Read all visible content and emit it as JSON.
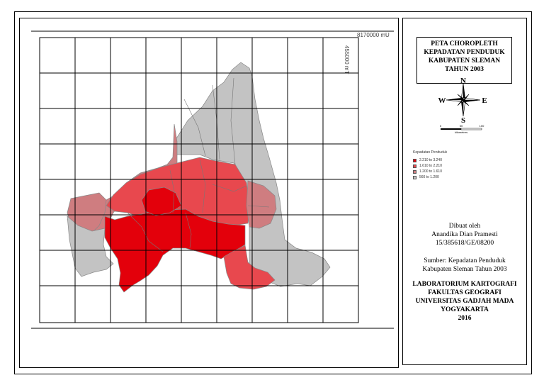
{
  "map": {
    "coord_top": "8170000 mU",
    "coord_side": "455000 mT"
  },
  "title": {
    "line1": "PETA CHOROPLETH",
    "line2": "KEPADATAN PENDUDUK",
    "line3": "KABUPATEN SLEMAN",
    "line4": "TAHUN 2003"
  },
  "compass": {
    "n": "N",
    "s": "S",
    "e": "E",
    "w": "W"
  },
  "scale": {
    "t0": "0",
    "t1": "50",
    "t2": "100",
    "unit": "kilometres"
  },
  "legend": {
    "title": "Kepadatan Penduduk",
    "items": [
      {
        "label": "2.210 to 3.240",
        "color": "#e3000b"
      },
      {
        "label": "1.610 to 2.210",
        "color": "#e8484e"
      },
      {
        "label": "1.200 to 1.610",
        "color": "#cf7d80"
      },
      {
        "label": "560 to 1.200",
        "color": "#c3c3c3"
      }
    ]
  },
  "credit": {
    "made_by": "Dibuat oleh",
    "author": "Anandika Dian Pramesti",
    "nim": "15/385618/GE/08200",
    "source_1": "Sumber: Kepadatan Penduduk",
    "source_2": "Kabupaten Sleman Tahun 2003"
  },
  "lab": {
    "line1": "LABORATORIUM KARTOGRAFI",
    "line2": "FAKULTAS GEOGRAFI",
    "line3": "UNIVERSITAS GADJAH MADA",
    "line4": "YOGYAKARTA",
    "line5": "2016"
  }
}
